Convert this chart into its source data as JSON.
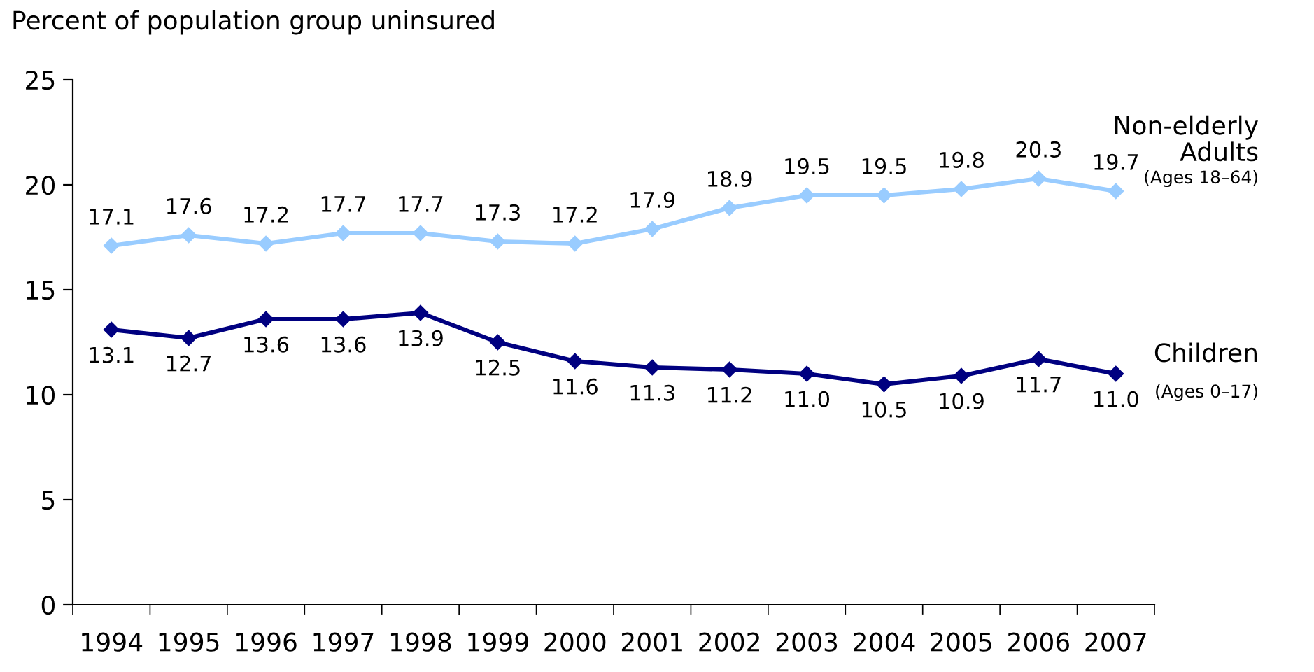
{
  "chart_data": {
    "type": "line",
    "ylabel": "Percent of population group uninsured",
    "categories": [
      "1994",
      "1995",
      "1996",
      "1997",
      "1998",
      "1999",
      "2000",
      "2001",
      "2002",
      "2003",
      "2004",
      "2005",
      "2006",
      "2007"
    ],
    "series": [
      {
        "name": "Non-elderly\nAdults",
        "color": "#99ccff",
        "values": [
          17.1,
          17.6,
          17.2,
          17.7,
          17.7,
          17.3,
          17.2,
          17.9,
          18.9,
          19.5,
          19.5,
          19.8,
          20.3,
          19.7
        ],
        "value_labels": [
          "17.1",
          "17.6",
          "17.2",
          "17.7",
          "17.7",
          "17.3",
          "17.2",
          "17.9",
          "18.9",
          "19.5",
          "19.5",
          "19.8",
          "20.3",
          "19.7"
        ]
      },
      {
        "name": "Children",
        "color": "#000080",
        "values": [
          13.1,
          12.7,
          13.6,
          13.6,
          13.9,
          12.5,
          11.6,
          11.3,
          11.2,
          11.0,
          10.5,
          10.9,
          11.7,
          11.0
        ],
        "value_labels": [
          "13.1",
          "12.7",
          "13.6",
          "13.6",
          "13.9",
          "12.5",
          "11.6",
          "11.3",
          "11.2",
          "11.0",
          "10.5",
          "10.9",
          "11.7",
          "11.0"
        ]
      }
    ],
    "annotations": [
      "(Ages 18–64)",
      "(Ages 0–17)"
    ],
    "ylim": [
      0,
      25
    ],
    "yticks": [
      0,
      5,
      10,
      15,
      20,
      25
    ],
    "marker": "diamond",
    "line_style": "solid",
    "grid": false,
    "legend": false
  }
}
